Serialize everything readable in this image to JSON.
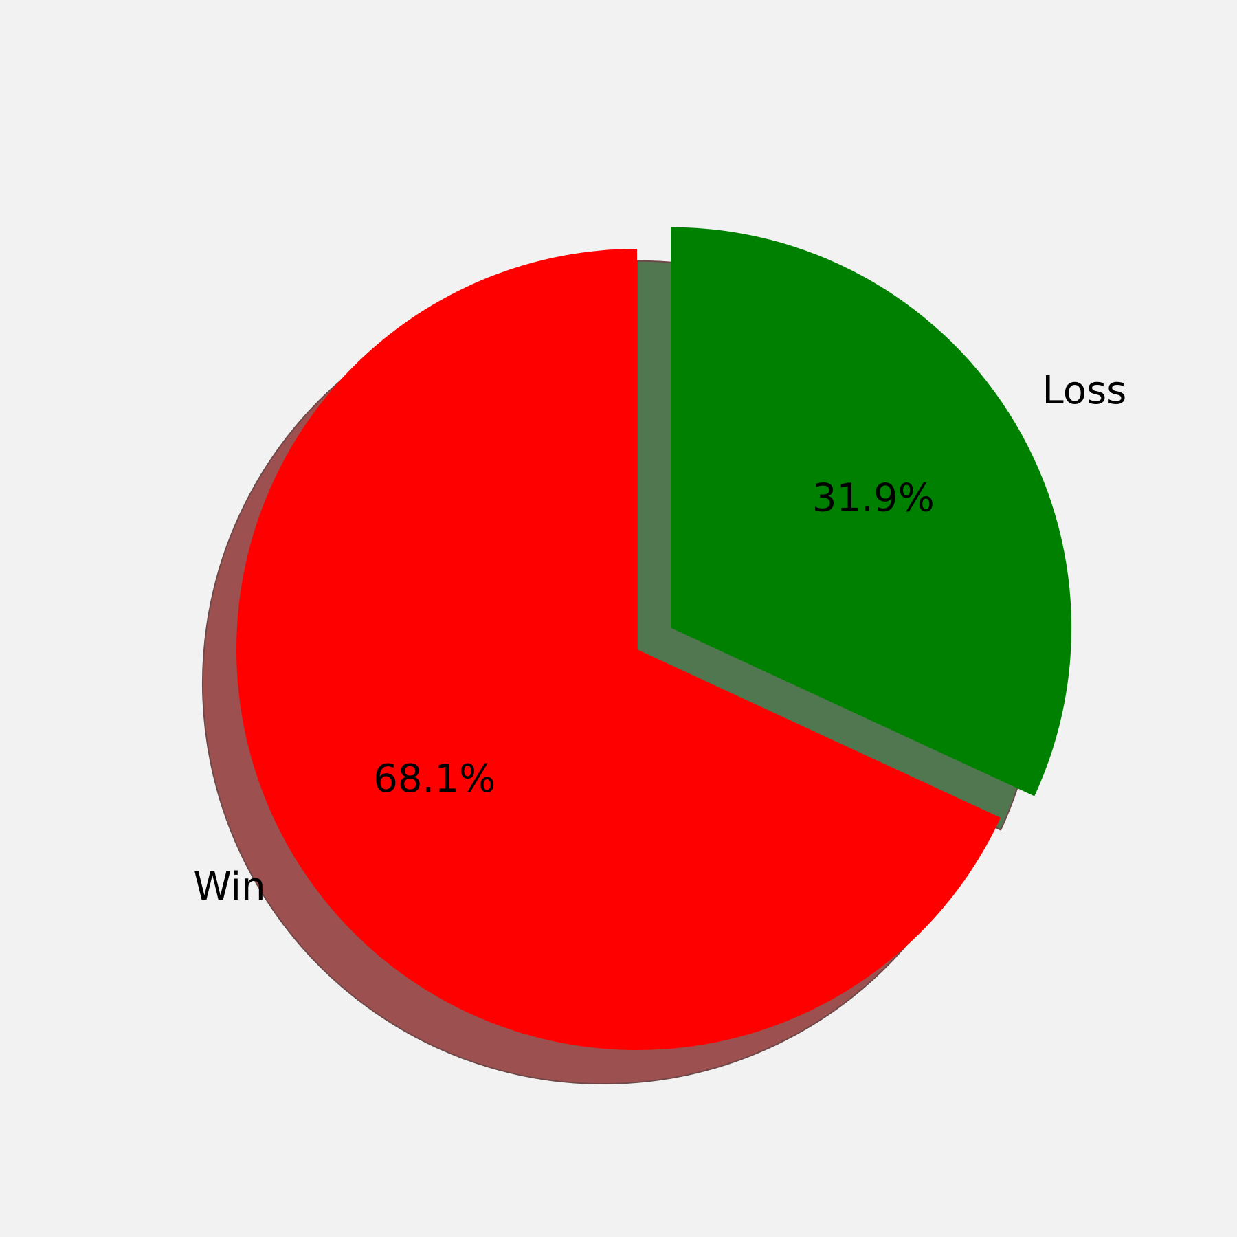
{
  "chart_data": {
    "type": "pie",
    "categories": [
      "Win",
      "Loss"
    ],
    "values": [
      68.1,
      31.9
    ],
    "percent_labels": [
      "68.1%",
      "31.9%"
    ],
    "colors": [
      "#ff0000",
      "#008000"
    ],
    "exploded": [
      false,
      true
    ],
    "shadow": true,
    "start_angle_deg": 90,
    "direction": "counterclockwise",
    "background": "#f2f2f2"
  }
}
